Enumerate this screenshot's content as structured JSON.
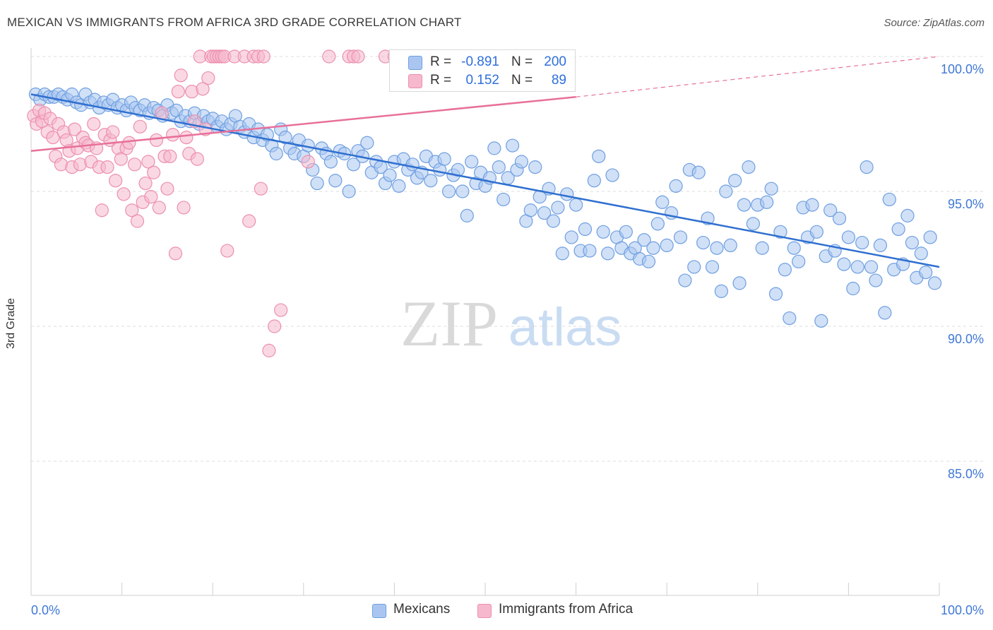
{
  "header": {
    "title": "MEXICAN VS IMMIGRANTS FROM AFRICA 3RD GRADE CORRELATION CHART",
    "source": "Source: ZipAtlas.com"
  },
  "watermark": {
    "zip": "ZIP",
    "atlas": "atlas"
  },
  "legend_top": {
    "rows": [
      {
        "r_label": "R =",
        "r_value": "-0.891",
        "n_label": "N =",
        "n_value": "200"
      },
      {
        "r_label": "R =",
        "r_value": "0.152",
        "n_label": "N =",
        "n_value": "89"
      }
    ]
  },
  "legend_bottom": {
    "items": [
      {
        "label": "Mexicans"
      },
      {
        "label": "Immigrants from Africa"
      }
    ]
  },
  "chart_data": {
    "type": "scatter",
    "title": "MEXICAN VS IMMIGRANTS FROM AFRICA 3RD GRADE CORRELATION CHART",
    "xlabel": "",
    "ylabel": "3rd Grade",
    "xlim": [
      0,
      100
    ],
    "ylim": [
      80.5,
      100.6
    ],
    "x_tick_labels": [
      "0.0%",
      "100.0%"
    ],
    "y_ticks": [
      100,
      95,
      90,
      85
    ],
    "y_tick_labels": [
      "100.0%",
      "95.0%",
      "90.0%",
      "85.0%"
    ],
    "grid": "horizontal dashed",
    "legend": "bottom-center",
    "colors": {
      "mexicans_fill": "#aac6f0",
      "mexicans_stroke": "#6f9fe0",
      "mexicans_line": "#2f6fd0",
      "africa_fill": "#f6b8cc",
      "africa_stroke": "#ec8fad",
      "africa_line": "#e8709a",
      "tick_label": "#3f78d6"
    },
    "series": [
      {
        "name": "Mexicans",
        "r": -0.891,
        "n": 200,
        "trend": {
          "x": [
            0,
            100
          ],
          "y": [
            98.6,
            92.2
          ],
          "dashed_from": null
        },
        "points": [
          [
            0.5,
            98.6
          ],
          [
            1.0,
            98.4
          ],
          [
            1.5,
            98.6
          ],
          [
            2.0,
            98.5
          ],
          [
            2.5,
            98.5
          ],
          [
            3.0,
            98.6
          ],
          [
            3.5,
            98.5
          ],
          [
            4.0,
            98.4
          ],
          [
            4.5,
            98.6
          ],
          [
            5.0,
            98.3
          ],
          [
            5.5,
            98.2
          ],
          [
            6.0,
            98.6
          ],
          [
            6.5,
            98.3
          ],
          [
            7.0,
            98.4
          ],
          [
            7.5,
            98.1
          ],
          [
            8.0,
            98.3
          ],
          [
            8.5,
            98.2
          ],
          [
            9.0,
            98.4
          ],
          [
            9.5,
            98.1
          ],
          [
            10.0,
            98.2
          ],
          [
            10.5,
            98.0
          ],
          [
            11.0,
            98.3
          ],
          [
            11.5,
            98.1
          ],
          [
            12.0,
            98.0
          ],
          [
            12.5,
            98.2
          ],
          [
            13.0,
            97.9
          ],
          [
            13.5,
            98.1
          ],
          [
            14.0,
            98.0
          ],
          [
            14.5,
            97.8
          ],
          [
            15.0,
            98.2
          ],
          [
            15.5,
            97.9
          ],
          [
            16.0,
            98.0
          ],
          [
            16.5,
            97.6
          ],
          [
            17.0,
            97.8
          ],
          [
            17.5,
            97.6
          ],
          [
            18.0,
            97.9
          ],
          [
            18.5,
            97.5
          ],
          [
            19.0,
            97.8
          ],
          [
            19.5,
            97.6
          ],
          [
            20.0,
            97.7
          ],
          [
            20.5,
            97.4
          ],
          [
            21.0,
            97.6
          ],
          [
            21.5,
            97.3
          ],
          [
            22.0,
            97.5
          ],
          [
            22.5,
            97.8
          ],
          [
            23.0,
            97.4
          ],
          [
            23.5,
            97.2
          ],
          [
            24.0,
            97.5
          ],
          [
            24.5,
            97.0
          ],
          [
            25.0,
            97.3
          ],
          [
            25.5,
            96.9
          ],
          [
            26.0,
            97.1
          ],
          [
            26.5,
            96.7
          ],
          [
            27.0,
            96.4
          ],
          [
            27.5,
            97.3
          ],
          [
            28.0,
            97.0
          ],
          [
            28.5,
            96.6
          ],
          [
            29.0,
            96.4
          ],
          [
            29.5,
            96.9
          ],
          [
            30.0,
            96.3
          ],
          [
            30.5,
            96.7
          ],
          [
            31.0,
            95.8
          ],
          [
            31.5,
            95.3
          ],
          [
            32.0,
            96.6
          ],
          [
            32.5,
            96.4
          ],
          [
            33.0,
            96.1
          ],
          [
            33.5,
            95.4
          ],
          [
            34.0,
            96.5
          ],
          [
            34.5,
            96.4
          ],
          [
            35.0,
            95.0
          ],
          [
            35.5,
            96.0
          ],
          [
            36.0,
            96.5
          ],
          [
            36.5,
            96.3
          ],
          [
            37.0,
            96.8
          ],
          [
            37.5,
            95.7
          ],
          [
            38.0,
            96.1
          ],
          [
            38.5,
            95.9
          ],
          [
            39.0,
            95.3
          ],
          [
            39.5,
            95.6
          ],
          [
            40.0,
            96.1
          ],
          [
            40.5,
            95.2
          ],
          [
            41.0,
            96.2
          ],
          [
            41.5,
            95.8
          ],
          [
            42.0,
            96.0
          ],
          [
            42.5,
            95.5
          ],
          [
            43.0,
            95.7
          ],
          [
            43.5,
            96.3
          ],
          [
            44.0,
            95.4
          ],
          [
            44.5,
            96.1
          ],
          [
            45.0,
            95.8
          ],
          [
            45.5,
            96.2
          ],
          [
            46.0,
            95.0
          ],
          [
            46.5,
            95.6
          ],
          [
            47.0,
            95.8
          ],
          [
            47.5,
            95.0
          ],
          [
            48.0,
            94.1
          ],
          [
            48.5,
            96.1
          ],
          [
            49.0,
            95.3
          ],
          [
            49.5,
            95.7
          ],
          [
            50.0,
            95.2
          ],
          [
            50.5,
            95.5
          ],
          [
            51.0,
            96.6
          ],
          [
            51.5,
            95.9
          ],
          [
            52.0,
            94.7
          ],
          [
            52.5,
            95.5
          ],
          [
            53.0,
            96.7
          ],
          [
            53.5,
            95.8
          ],
          [
            54.0,
            96.1
          ],
          [
            54.5,
            93.9
          ],
          [
            55.0,
            94.3
          ],
          [
            55.5,
            95.9
          ],
          [
            56.0,
            94.8
          ],
          [
            56.5,
            94.2
          ],
          [
            57.0,
            95.1
          ],
          [
            57.5,
            93.9
          ],
          [
            58.0,
            94.4
          ],
          [
            58.5,
            92.7
          ],
          [
            59.0,
            94.9
          ],
          [
            59.5,
            93.3
          ],
          [
            60.0,
            94.5
          ],
          [
            60.5,
            92.8
          ],
          [
            61.0,
            93.6
          ],
          [
            61.5,
            92.8
          ],
          [
            62.0,
            95.4
          ],
          [
            62.5,
            96.3
          ],
          [
            63.0,
            93.5
          ],
          [
            63.5,
            92.7
          ],
          [
            64.0,
            95.6
          ],
          [
            64.5,
            93.3
          ],
          [
            65.0,
            92.9
          ],
          [
            65.5,
            93.5
          ],
          [
            66.0,
            92.7
          ],
          [
            66.5,
            92.9
          ],
          [
            67.0,
            92.5
          ],
          [
            67.5,
            93.2
          ],
          [
            68.0,
            92.4
          ],
          [
            68.5,
            92.9
          ],
          [
            69.0,
            93.8
          ],
          [
            69.5,
            94.6
          ],
          [
            70.0,
            93.0
          ],
          [
            70.5,
            94.2
          ],
          [
            71.0,
            95.2
          ],
          [
            71.5,
            93.3
          ],
          [
            72.0,
            91.7
          ],
          [
            72.5,
            95.8
          ],
          [
            73.0,
            92.2
          ],
          [
            73.5,
            95.7
          ],
          [
            74.0,
            93.1
          ],
          [
            74.5,
            94.0
          ],
          [
            75.0,
            92.2
          ],
          [
            75.5,
            92.9
          ],
          [
            76.0,
            91.3
          ],
          [
            76.5,
            95.0
          ],
          [
            77.0,
            93.0
          ],
          [
            77.5,
            95.4
          ],
          [
            78.0,
            91.6
          ],
          [
            78.5,
            94.5
          ],
          [
            79.0,
            95.9
          ],
          [
            79.5,
            93.8
          ],
          [
            80.0,
            94.5
          ],
          [
            80.5,
            92.9
          ],
          [
            81.0,
            94.6
          ],
          [
            81.5,
            95.1
          ],
          [
            82.0,
            91.2
          ],
          [
            82.5,
            93.5
          ],
          [
            83.0,
            92.1
          ],
          [
            83.5,
            90.3
          ],
          [
            84.0,
            92.9
          ],
          [
            84.5,
            92.4
          ],
          [
            85.0,
            94.4
          ],
          [
            85.5,
            93.3
          ],
          [
            86.0,
            94.5
          ],
          [
            86.5,
            93.5
          ],
          [
            87.0,
            90.2
          ],
          [
            87.5,
            92.6
          ],
          [
            88.0,
            94.3
          ],
          [
            88.5,
            92.8
          ],
          [
            89.0,
            94.0
          ],
          [
            89.5,
            92.3
          ],
          [
            90.0,
            93.3
          ],
          [
            90.5,
            91.4
          ],
          [
            91.0,
            92.2
          ],
          [
            91.5,
            93.1
          ],
          [
            92.0,
            95.9
          ],
          [
            92.5,
            92.2
          ],
          [
            93.0,
            91.7
          ],
          [
            93.5,
            93.0
          ],
          [
            94.0,
            90.5
          ],
          [
            94.5,
            94.7
          ],
          [
            95.0,
            92.1
          ],
          [
            95.5,
            93.6
          ],
          [
            96.0,
            92.3
          ],
          [
            96.5,
            94.1
          ],
          [
            97.0,
            93.1
          ],
          [
            97.5,
            91.8
          ],
          [
            98.0,
            92.7
          ],
          [
            98.5,
            92.0
          ],
          [
            99.0,
            93.3
          ],
          [
            99.5,
            91.6
          ]
        ]
      },
      {
        "name": "Immigrants from Africa",
        "r": 0.152,
        "n": 89,
        "trend": {
          "x": [
            0,
            60
          ],
          "y": [
            96.5,
            98.5
          ],
          "dashed_to": [
            100,
            100.0
          ]
        },
        "points": [
          [
            0.3,
            97.8
          ],
          [
            0.6,
            97.5
          ],
          [
            0.9,
            98.0
          ],
          [
            1.2,
            97.6
          ],
          [
            1.5,
            97.9
          ],
          [
            1.8,
            97.2
          ],
          [
            2.1,
            97.7
          ],
          [
            2.4,
            97.0
          ],
          [
            2.7,
            96.3
          ],
          [
            3.0,
            97.5
          ],
          [
            3.3,
            96.0
          ],
          [
            3.6,
            97.2
          ],
          [
            3.9,
            96.9
          ],
          [
            4.2,
            96.5
          ],
          [
            4.5,
            95.9
          ],
          [
            4.8,
            97.3
          ],
          [
            5.1,
            96.6
          ],
          [
            5.4,
            96.0
          ],
          [
            5.7,
            97.0
          ],
          [
            6.0,
            96.8
          ],
          [
            6.3,
            96.7
          ],
          [
            6.6,
            96.1
          ],
          [
            6.9,
            97.5
          ],
          [
            7.2,
            96.6
          ],
          [
            7.5,
            95.9
          ],
          [
            7.8,
            94.3
          ],
          [
            8.1,
            97.1
          ],
          [
            8.4,
            95.9
          ],
          [
            8.7,
            96.9
          ],
          [
            9.0,
            97.2
          ],
          [
            9.3,
            95.4
          ],
          [
            9.6,
            96.6
          ],
          [
            9.9,
            96.2
          ],
          [
            10.2,
            94.9
          ],
          [
            10.5,
            96.6
          ],
          [
            10.8,
            96.8
          ],
          [
            11.1,
            94.3
          ],
          [
            11.4,
            96.0
          ],
          [
            11.7,
            93.9
          ],
          [
            12.0,
            97.4
          ],
          [
            12.3,
            94.6
          ],
          [
            12.6,
            95.3
          ],
          [
            12.9,
            96.1
          ],
          [
            13.2,
            94.8
          ],
          [
            13.5,
            95.7
          ],
          [
            13.8,
            96.9
          ],
          [
            14.1,
            94.4
          ],
          [
            14.4,
            97.9
          ],
          [
            14.7,
            96.3
          ],
          [
            15.0,
            95.1
          ],
          [
            15.3,
            96.3
          ],
          [
            15.6,
            97.1
          ],
          [
            15.9,
            92.7
          ],
          [
            16.2,
            98.7
          ],
          [
            16.5,
            99.3
          ],
          [
            16.8,
            94.4
          ],
          [
            17.1,
            97.0
          ],
          [
            17.4,
            96.4
          ],
          [
            17.7,
            98.7
          ],
          [
            18.0,
            97.6
          ],
          [
            18.3,
            96.2
          ],
          [
            18.6,
            100.0
          ],
          [
            18.9,
            98.8
          ],
          [
            19.2,
            97.3
          ],
          [
            19.5,
            99.2
          ],
          [
            19.8,
            100.0
          ],
          [
            20.1,
            100.0
          ],
          [
            20.4,
            100.0
          ],
          [
            20.7,
            100.0
          ],
          [
            21.0,
            100.0
          ],
          [
            21.3,
            100.0
          ],
          [
            21.6,
            92.8
          ],
          [
            22.4,
            100.0
          ],
          [
            23.5,
            100.0
          ],
          [
            24.0,
            93.9
          ],
          [
            24.5,
            100.0
          ],
          [
            25.0,
            100.0
          ],
          [
            25.3,
            95.1
          ],
          [
            25.6,
            100.0
          ],
          [
            26.2,
            89.1
          ],
          [
            26.8,
            90.0
          ],
          [
            27.5,
            90.6
          ],
          [
            30.5,
            96.1
          ],
          [
            32.8,
            100.0
          ],
          [
            35.0,
            100.0
          ],
          [
            35.5,
            100.0
          ],
          [
            36.0,
            100.0
          ],
          [
            39.0,
            100.0
          ],
          [
            40.0,
            100.0
          ]
        ]
      }
    ]
  }
}
